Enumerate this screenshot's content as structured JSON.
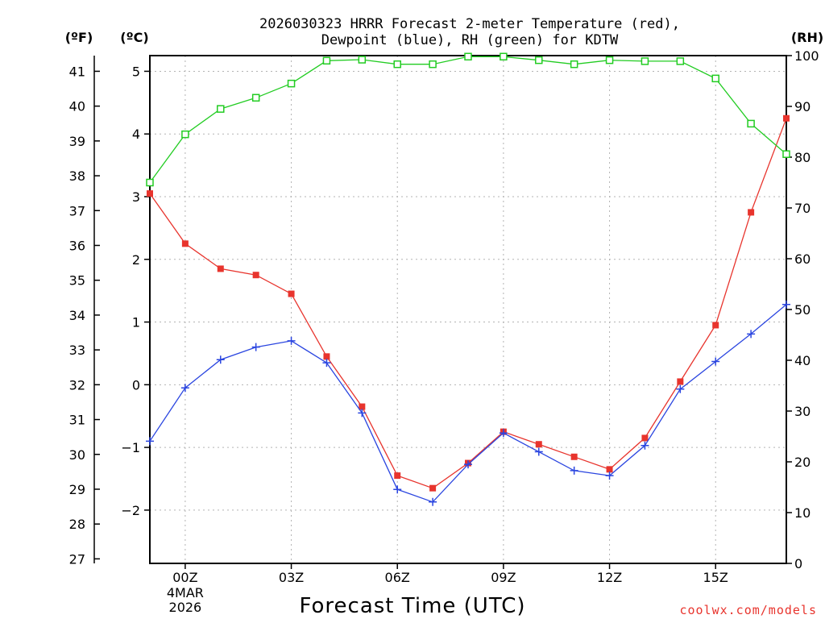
{
  "chart_data": {
    "type": "line",
    "title_line1": "2026030323 HRRR Forecast 2-meter Temperature (red),",
    "title_line2": "Dewpoint (blue), RH (green) for KDTW",
    "xlabel": "Forecast Time (UTC)",
    "credit": "coolwx.com/models",
    "unit_f": "(ºF)",
    "unit_c": "(ºC)",
    "unit_rh": "(RH)",
    "x": [
      23,
      24,
      25,
      26,
      27,
      28,
      29,
      30,
      31,
      32,
      33,
      34,
      35,
      36,
      37,
      38,
      39,
      40,
      41
    ],
    "xlim": [
      23,
      41
    ],
    "x_ticks": [
      {
        "x": 24,
        "label": "00Z",
        "sub1": "4MAR",
        "sub2": "2026"
      },
      {
        "x": 27,
        "label": "03Z"
      },
      {
        "x": 30,
        "label": "06Z"
      },
      {
        "x": 33,
        "label": "09Z"
      },
      {
        "x": 36,
        "label": "12Z"
      },
      {
        "x": 39,
        "label": "15Z"
      }
    ],
    "ylim_c": [
      -2.85,
      5.25
    ],
    "y_ticks_c": [
      {
        "v": -2,
        "label": "−2"
      },
      {
        "v": -1,
        "label": "−1"
      },
      {
        "v": 0,
        "label": "0"
      },
      {
        "v": 1,
        "label": "1"
      },
      {
        "v": 2,
        "label": "2"
      },
      {
        "v": 3,
        "label": "3"
      },
      {
        "v": 4,
        "label": "4"
      },
      {
        "v": 5,
        "label": "5"
      }
    ],
    "y_ticks_f": [
      {
        "v": 27,
        "label": "27"
      },
      {
        "v": 28,
        "label": "28"
      },
      {
        "v": 29,
        "label": "29"
      },
      {
        "v": 30,
        "label": "30"
      },
      {
        "v": 31,
        "label": "31"
      },
      {
        "v": 32,
        "label": "32"
      },
      {
        "v": 33,
        "label": "33"
      },
      {
        "v": 34,
        "label": "34"
      },
      {
        "v": 35,
        "label": "35"
      },
      {
        "v": 36,
        "label": "36"
      },
      {
        "v": 37,
        "label": "37"
      },
      {
        "v": 38,
        "label": "38"
      },
      {
        "v": 39,
        "label": "39"
      },
      {
        "v": 40,
        "label": "40"
      },
      {
        "v": 41,
        "label": "41"
      }
    ],
    "ylim_rh": [
      0,
      100
    ],
    "y_ticks_rh": [
      {
        "v": 0,
        "label": "0"
      },
      {
        "v": 10,
        "label": "10"
      },
      {
        "v": 20,
        "label": "20"
      },
      {
        "v": 30,
        "label": "30"
      },
      {
        "v": 40,
        "label": "40"
      },
      {
        "v": 50,
        "label": "50"
      },
      {
        "v": 60,
        "label": "60"
      },
      {
        "v": 70,
        "label": "70"
      },
      {
        "v": 80,
        "label": "80"
      },
      {
        "v": 90,
        "label": "90"
      },
      {
        "v": 100,
        "label": "100"
      }
    ],
    "series": [
      {
        "name": "Temperature",
        "axis": "c",
        "color": "#e8342d",
        "marker": "filled-square",
        "values": [
          3.05,
          2.25,
          1.85,
          1.75,
          1.45,
          0.45,
          -0.35,
          -1.45,
          -1.65,
          -1.25,
          -0.75,
          -0.95,
          -1.15,
          -1.35,
          -0.85,
          0.05,
          0.95,
          2.75,
          4.25
        ]
      },
      {
        "name": "Dewpoint",
        "axis": "c",
        "color": "#2a45e0",
        "marker": "plus",
        "values": [
          -0.9,
          -0.05,
          0.4,
          0.6,
          0.7,
          0.35,
          -0.45,
          -1.67,
          -1.87,
          -1.27,
          -0.77,
          -1.07,
          -1.37,
          -1.45,
          -0.97,
          -0.07,
          0.37,
          0.81,
          1.28
        ]
      },
      {
        "name": "RH",
        "axis": "rh",
        "color": "#22cc22",
        "marker": "open-square",
        "values": [
          75,
          84.5,
          89.5,
          91.7,
          94.5,
          99,
          99.2,
          98.3,
          98.3,
          99.8,
          99.8,
          99.1,
          98.3,
          99.1,
          98.9,
          98.9,
          95.5,
          86.6,
          80.6
        ]
      }
    ]
  }
}
